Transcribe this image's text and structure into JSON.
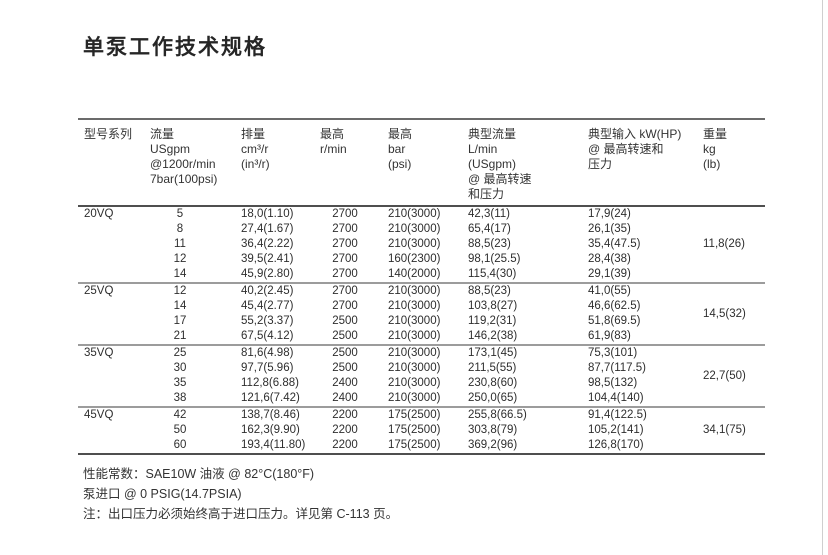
{
  "page": {
    "title": "单泵工作技术规格"
  },
  "colors": {
    "text": "#2e2e2e",
    "rule_dark": "#4f4f4f",
    "rule_gray": "#9c9c9c",
    "page_edge": "#cfcfcf",
    "background": "#ffffff"
  },
  "table": {
    "headers": [
      "型号系列",
      "流量 USgpm\n@1200r/min\n7bar(100psi)",
      "排量\ncm³/r\n(in³/r)",
      "最高\nr/min",
      "最高\nbar\n(psi)",
      "典型流量\nL/min\n(USgpm)\n@ 最高转速\n和压力",
      "典型输入 kW(HP)\n@ 最高转速和\n压力",
      "重量\nkg\n(lb)"
    ],
    "groups": [
      {
        "model": "20VQ",
        "weight": "11,8(26)",
        "rows": [
          [
            "5",
            "18,0(1.10)",
            "2700",
            "210(3000)",
            "42,3(11)",
            "17,9(24)"
          ],
          [
            "8",
            "27,4(1.67)",
            "2700",
            "210(3000)",
            "65,4(17)",
            "26,1(35)"
          ],
          [
            "11",
            "36,4(2.22)",
            "2700",
            "210(3000)",
            "88,5(23)",
            "35,4(47.5)"
          ],
          [
            "12",
            "39,5(2.41)",
            "2700",
            "160(2300)",
            "98,1(25.5)",
            "28,4(38)"
          ],
          [
            "14",
            "45,9(2.80)",
            "2700",
            "140(2000)",
            "115,4(30)",
            "29,1(39)"
          ]
        ]
      },
      {
        "model": "25VQ",
        "weight": "14,5(32)",
        "rows": [
          [
            "12",
            "40,2(2.45)",
            "2700",
            "210(3000)",
            "88,5(23)",
            "41,0(55)"
          ],
          [
            "14",
            "45,4(2.77)",
            "2700",
            "210(3000)",
            "103,8(27)",
            "46,6(62.5)"
          ],
          [
            "17",
            "55,2(3.37)",
            "2500",
            "210(3000)",
            "119,2(31)",
            "51,8(69.5)"
          ],
          [
            "21",
            "67,5(4.12)",
            "2500",
            "210(3000)",
            "146,2(38)",
            "61,9(83)"
          ]
        ]
      },
      {
        "model": "35VQ",
        "weight": "22,7(50)",
        "rows": [
          [
            "25",
            "81,6(4.98)",
            "2500",
            "210(3000)",
            "173,1(45)",
            "75,3(101)"
          ],
          [
            "30",
            "97,7(5.96)",
            "2500",
            "210(3000)",
            "211,5(55)",
            "87,7(117.5)"
          ],
          [
            "35",
            "112,8(6.88)",
            "2400",
            "210(3000)",
            "230,8(60)",
            "98,5(132)"
          ],
          [
            "38",
            "121,6(7.42)",
            "2400",
            "210(3000)",
            "250,0(65)",
            "104,4(140)"
          ]
        ]
      },
      {
        "model": "45VQ",
        "weight": "34,1(75)",
        "rows": [
          [
            "42",
            "138,7(8.46)",
            "2200",
            "175(2500)",
            "255,8(66.5)",
            "91,4(122.5)"
          ],
          [
            "50",
            "162,3(9.90)",
            "2200",
            "175(2500)",
            "303,8(79)",
            "105,2(141)"
          ],
          [
            "60",
            "193,4(11.80)",
            "2200",
            "175(2500)",
            "369,2(96)",
            "126,8(170)"
          ]
        ]
      }
    ]
  },
  "notes": [
    "性能常数：SAE10W 油液 @ 82°C(180°F)",
    "泵进口 @ 0 PSIG(14.7PSIA)",
    "注：出口压力必须始终高于进口压力。详见第 C-113 页。"
  ]
}
